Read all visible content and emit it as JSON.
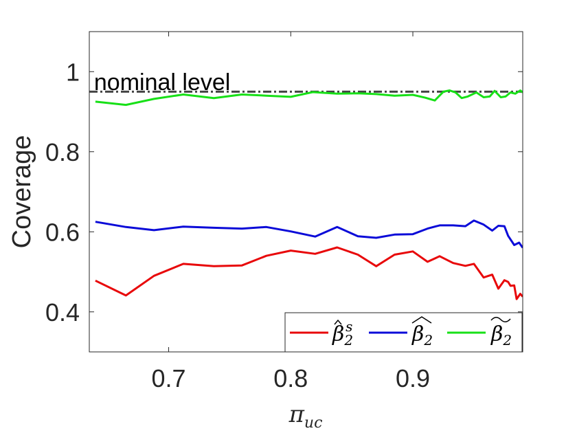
{
  "chart_data": {
    "type": "line",
    "xlabel": "π_uc",
    "ylabel": "Coverage",
    "xlim": [
      0.635,
      0.99
    ],
    "ylim": [
      0.3,
      1.1
    ],
    "xticks": [
      0.7,
      0.8,
      0.9
    ],
    "yticks": [
      0.4,
      0.6,
      0.8,
      1.0
    ],
    "xtick_labels": [
      "0.7",
      "0.8",
      "0.9"
    ],
    "ytick_labels": [
      "0.4",
      "0.6",
      "0.8",
      "1"
    ],
    "grid": false,
    "legend_position": "bottom-right",
    "annotation": {
      "text": "nominal level",
      "x": 0.64,
      "y": 0.975
    },
    "reference_line": {
      "y": 0.95,
      "style": "dash-dot",
      "color": "#444444"
    },
    "series": [
      {
        "name": "β̂₂ˢ",
        "color": "#e8080a",
        "x": [
          0.64,
          0.665,
          0.688,
          0.712,
          0.737,
          0.76,
          0.78,
          0.8,
          0.82,
          0.838,
          0.855,
          0.87,
          0.885,
          0.9,
          0.912,
          0.922,
          0.933,
          0.943,
          0.95,
          0.958,
          0.965,
          0.97,
          0.975,
          0.978,
          0.98,
          0.983,
          0.985,
          0.988,
          0.99
        ],
        "y": [
          0.478,
          0.441,
          0.49,
          0.52,
          0.514,
          0.516,
          0.54,
          0.553,
          0.545,
          0.561,
          0.543,
          0.514,
          0.543,
          0.551,
          0.525,
          0.539,
          0.522,
          0.515,
          0.52,
          0.486,
          0.493,
          0.458,
          0.479,
          0.475,
          0.465,
          0.466,
          0.432,
          0.445,
          0.438
        ]
      },
      {
        "name": "β̂₂",
        "color": "#0b0bd8",
        "x": [
          0.64,
          0.665,
          0.688,
          0.712,
          0.737,
          0.76,
          0.78,
          0.8,
          0.82,
          0.838,
          0.855,
          0.87,
          0.885,
          0.9,
          0.912,
          0.922,
          0.933,
          0.943,
          0.95,
          0.958,
          0.965,
          0.97,
          0.975,
          0.978,
          0.983,
          0.987,
          0.99
        ],
        "y": [
          0.625,
          0.612,
          0.604,
          0.613,
          0.61,
          0.608,
          0.612,
          0.601,
          0.588,
          0.612,
          0.589,
          0.585,
          0.593,
          0.594,
          0.608,
          0.616,
          0.616,
          0.614,
          0.628,
          0.618,
          0.603,
          0.615,
          0.614,
          0.59,
          0.567,
          0.573,
          0.56
        ]
      },
      {
        "name": "β̃₂",
        "color": "#17e017",
        "x": [
          0.64,
          0.665,
          0.688,
          0.712,
          0.737,
          0.76,
          0.78,
          0.8,
          0.818,
          0.838,
          0.855,
          0.87,
          0.885,
          0.9,
          0.91,
          0.918,
          0.925,
          0.93,
          0.935,
          0.94,
          0.945,
          0.952,
          0.958,
          0.963,
          0.967,
          0.972,
          0.976,
          0.98,
          0.984,
          0.988,
          0.99
        ],
        "y": [
          0.925,
          0.917,
          0.932,
          0.943,
          0.934,
          0.943,
          0.94,
          0.937,
          0.949,
          0.945,
          0.946,
          0.944,
          0.94,
          0.942,
          0.935,
          0.928,
          0.95,
          0.953,
          0.948,
          0.934,
          0.938,
          0.948,
          0.936,
          0.938,
          0.952,
          0.936,
          0.938,
          0.948,
          0.945,
          0.953,
          0.948
        ]
      }
    ]
  }
}
